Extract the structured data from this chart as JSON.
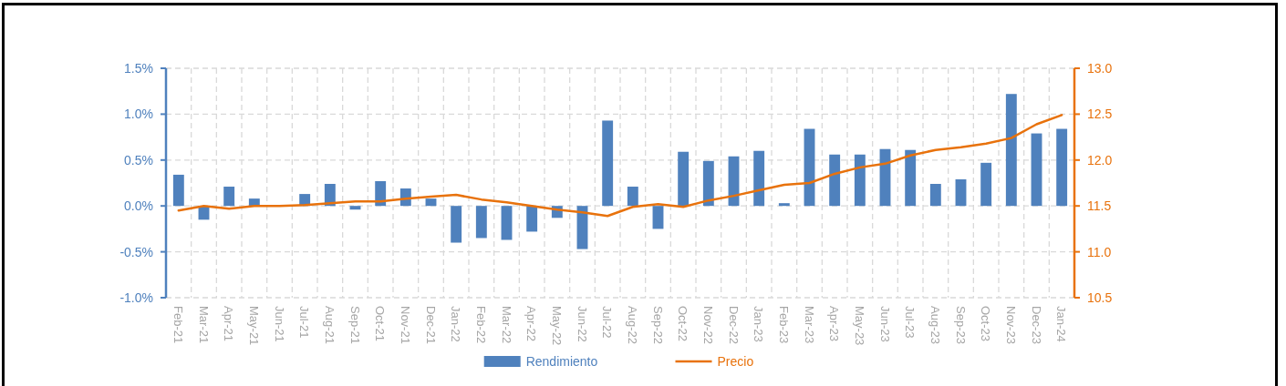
{
  "chart_data": {
    "type": "bar",
    "categories": [
      "Feb-21",
      "Mar-21",
      "Apr-21",
      "May-21",
      "Jun-21",
      "Jul-21",
      "Aug-21",
      "Sep-21",
      "Oct-21",
      "Nov-21",
      "Dec-21",
      "Jan-22",
      "Feb-22",
      "Mar-22",
      "Apr-22",
      "May-22",
      "Jun-22",
      "Jul-22",
      "Aug-22",
      "Sep-22",
      "Oct-22",
      "Nov-22",
      "Dec-22",
      "Jan-23",
      "Feb-23",
      "Mar-23",
      "Apr-23",
      "May-23",
      "Jun-23",
      "Jul-23",
      "Aug-23",
      "Sep-23",
      "Oct-23",
      "Nov-23",
      "Dec-23",
      "Jan-24"
    ],
    "series": [
      {
        "name": "Rendimiento",
        "color": "#4f81bd",
        "values": [
          0.34,
          -0.15,
          0.21,
          0.08,
          0,
          0.13,
          0.24,
          -0.04,
          0.27,
          0.19,
          0.08,
          -0.4,
          -0.35,
          -0.37,
          -0.28,
          -0.13,
          -0.47,
          0.93,
          0.21,
          -0.25,
          0.59,
          0.49,
          0.54,
          0.6,
          0.03,
          0.84,
          0.56,
          0.56,
          0.62,
          0.61,
          0.24,
          0.29,
          0.47,
          1.22,
          0.79,
          0.84
        ]
      },
      {
        "name": "Precio",
        "type": "line",
        "axis": "y2",
        "color": "#e8720c",
        "values": [
          11.45,
          11.5,
          11.47,
          11.5,
          11.5,
          11.51,
          11.53,
          11.55,
          11.55,
          11.58,
          11.6,
          11.62,
          11.57,
          11.54,
          11.5,
          11.46,
          11.43,
          11.39,
          11.49,
          11.52,
          11.49,
          11.56,
          11.61,
          11.67,
          11.73,
          11.75,
          11.85,
          11.92,
          11.96,
          12.05,
          12.11,
          12.14,
          12.18,
          12.24,
          12.39,
          12.49
        ]
      }
    ],
    "ylim": [
      -1.0,
      1.5
    ],
    "yticks": [
      {
        "value": -1.0,
        "label": "-1.0%"
      },
      {
        "value": -0.5,
        "label": "-0.5%"
      },
      {
        "value": 0,
        "label": "0.0%"
      },
      {
        "value": 0.5,
        "label": "0.5%"
      },
      {
        "value": 1.0,
        "label": "1.0%"
      },
      {
        "value": 1.5,
        "label": "1.5%"
      }
    ],
    "y2lim": [
      10.5,
      13.0
    ],
    "y2ticks": [
      10.5,
      {
        "value": 11,
        "label": "11.0"
      },
      11.5,
      {
        "value": 12,
        "label": "12.0"
      },
      12.5,
      {
        "value": 13,
        "label": "13.0"
      }
    ],
    "grid": true,
    "legend": "bottom"
  }
}
